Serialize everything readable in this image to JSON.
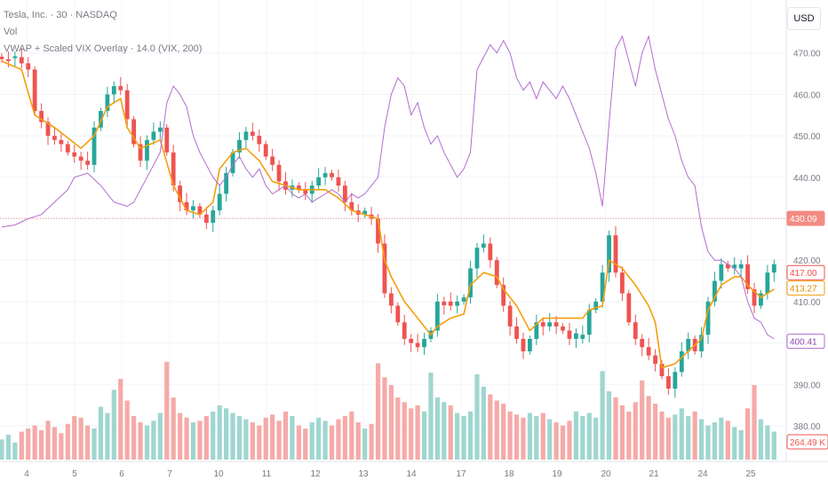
{
  "header": {
    "title": "Tesla, Inc. · 30 · NASDAQ",
    "vol_label": "Vol",
    "indicator_label": "VWAP + Scaled VIX Overlay · 14.0 (VIX, 200)"
  },
  "currency_button": "USD",
  "colors": {
    "up": "#26a69a",
    "down": "#ef5350",
    "vol_up": "#9fd6d0",
    "vol_down": "#f5aaa8",
    "vwap": "#f59e0b",
    "vix": "#b16ccf",
    "price_line": "#f28b82"
  },
  "chart_data": {
    "type": "candlestick",
    "y_axis_ticks": [
      "470.00",
      "460.00",
      "450.00",
      "440.00",
      "430.00",
      "420.00",
      "410.00",
      "400.00",
      "390.00",
      "380.00"
    ],
    "ylim": [
      377,
      477
    ],
    "x_tick_labels": [
      "4",
      "5",
      "6",
      "7",
      "10",
      "11",
      "12",
      "13",
      "14",
      "17",
      "18",
      "19",
      "20",
      "21",
      "24",
      "25"
    ],
    "current_price_line": 430.09,
    "axis_tags": [
      {
        "label": "430.09",
        "value": 430.09,
        "style": "price"
      },
      {
        "label": "417.00",
        "value": 417.0,
        "style": "close"
      },
      {
        "label": "413.27",
        "value": 413.27,
        "style": "vwap"
      },
      {
        "label": "400.41",
        "value": 400.41,
        "style": "vix"
      },
      {
        "label": "264.49 K",
        "value": 378.3,
        "style": "volume"
      }
    ],
    "close_path": [
      [
        0,
        468.5
      ],
      [
        2,
        469
      ],
      [
        4,
        466
      ],
      [
        5,
        456
      ],
      [
        6.5,
        452
      ],
      [
        7,
        450
      ],
      [
        8,
        449
      ],
      [
        9,
        448
      ],
      [
        10,
        446
      ],
      [
        11,
        445
      ],
      [
        12,
        444
      ],
      [
        13,
        443
      ],
      [
        14,
        452
      ],
      [
        15,
        456
      ],
      [
        16,
        460
      ],
      [
        17,
        462
      ],
      [
        17.5,
        465
      ],
      [
        18,
        461
      ],
      [
        19,
        454
      ],
      [
        20,
        448
      ],
      [
        20.5,
        441
      ],
      [
        21,
        444
      ],
      [
        22,
        449
      ],
      [
        23,
        451
      ],
      [
        24,
        452
      ],
      [
        25,
        446
      ],
      [
        26,
        438
      ],
      [
        27,
        434
      ],
      [
        28,
        432
      ],
      [
        29,
        433
      ],
      [
        30,
        431
      ],
      [
        31,
        429
      ],
      [
        32,
        432
      ],
      [
        33,
        436
      ],
      [
        34,
        441
      ],
      [
        35,
        446
      ],
      [
        36,
        449
      ],
      [
        37,
        451
      ],
      [
        38,
        450
      ],
      [
        39,
        448
      ],
      [
        40,
        445
      ],
      [
        41,
        443
      ],
      [
        42,
        439
      ],
      [
        43,
        437
      ],
      [
        44,
        438
      ],
      [
        45,
        437
      ],
      [
        46,
        436
      ],
      [
        47,
        438
      ],
      [
        48,
        440
      ],
      [
        49,
        441
      ],
      [
        50,
        440
      ],
      [
        51,
        438
      ],
      [
        52,
        434
      ],
      [
        53,
        432
      ],
      [
        54,
        431
      ],
      [
        55,
        431
      ],
      [
        56,
        430
      ],
      [
        57,
        424
      ],
      [
        58,
        412
      ],
      [
        59,
        409
      ],
      [
        60,
        405
      ],
      [
        61,
        401
      ],
      [
        62,
        400
      ],
      [
        63,
        399
      ],
      [
        64,
        401
      ],
      [
        65,
        403
      ],
      [
        66,
        410
      ],
      [
        67,
        410
      ],
      [
        68,
        409
      ],
      [
        69,
        410
      ],
      [
        70,
        411
      ],
      [
        71,
        418
      ],
      [
        72,
        423
      ],
      [
        73,
        424
      ],
      [
        74,
        420
      ],
      [
        75,
        414
      ],
      [
        76,
        409
      ],
      [
        77,
        404
      ],
      [
        78,
        401
      ],
      [
        79,
        398
      ],
      [
        80,
        401
      ],
      [
        81,
        405
      ],
      [
        82,
        404
      ],
      [
        83,
        405
      ],
      [
        84,
        404
      ],
      [
        85,
        403
      ],
      [
        86,
        401
      ],
      [
        87,
        401
      ],
      [
        88,
        402
      ],
      [
        89,
        408
      ],
      [
        90,
        410
      ],
      [
        91,
        417
      ],
      [
        92,
        426
      ],
      [
        93,
        417
      ],
      [
        94,
        412
      ],
      [
        95,
        405
      ],
      [
        96,
        401
      ],
      [
        97,
        399
      ],
      [
        98,
        397
      ],
      [
        99,
        395
      ],
      [
        100,
        392
      ],
      [
        101,
        389
      ],
      [
        102,
        393
      ],
      [
        103,
        398
      ],
      [
        104,
        401
      ],
      [
        105,
        398
      ],
      [
        106,
        402
      ],
      [
        107,
        410
      ],
      [
        108,
        415
      ],
      [
        109,
        419
      ],
      [
        110,
        418
      ],
      [
        111,
        418
      ],
      [
        112,
        419
      ],
      [
        113,
        413
      ],
      [
        114,
        409
      ],
      [
        115,
        412
      ],
      [
        116,
        417
      ],
      [
        117,
        419
      ],
      [
        118,
        417
      ]
    ],
    "vwap_path": [
      [
        0,
        468
      ],
      [
        3,
        466
      ],
      [
        5,
        455
      ],
      [
        8,
        452
      ],
      [
        12,
        447
      ],
      [
        14,
        450
      ],
      [
        16,
        457
      ],
      [
        18,
        459
      ],
      [
        19,
        452
      ],
      [
        21,
        447
      ],
      [
        24,
        449
      ],
      [
        26,
        438
      ],
      [
        28,
        432
      ],
      [
        30,
        431
      ],
      [
        32,
        434
      ],
      [
        33,
        442
      ],
      [
        35,
        446
      ],
      [
        37,
        447
      ],
      [
        39,
        444
      ],
      [
        41,
        439
      ],
      [
        43,
        438
      ],
      [
        45,
        437
      ],
      [
        47,
        437
      ],
      [
        49,
        437
      ],
      [
        51,
        435
      ],
      [
        53,
        432
      ],
      [
        55,
        431
      ],
      [
        57,
        430
      ],
      [
        58,
        420
      ],
      [
        59,
        416
      ],
      [
        61,
        410
      ],
      [
        63,
        406
      ],
      [
        64,
        404
      ],
      [
        65,
        402
      ],
      [
        66,
        404
      ],
      [
        68,
        406
      ],
      [
        70,
        407
      ],
      [
        71,
        414
      ],
      [
        73,
        417
      ],
      [
        75,
        416
      ],
      [
        76,
        413
      ],
      [
        78,
        409
      ],
      [
        80,
        403
      ],
      [
        82,
        406
      ],
      [
        84,
        406
      ],
      [
        86,
        406
      ],
      [
        88,
        406
      ],
      [
        89,
        408
      ],
      [
        91,
        409
      ],
      [
        92,
        420
      ],
      [
        94,
        418
      ],
      [
        96,
        414
      ],
      [
        98,
        409
      ],
      [
        99,
        405
      ],
      [
        100,
        394
      ],
      [
        102,
        395
      ],
      [
        104,
        398
      ],
      [
        106,
        401
      ],
      [
        107,
        408
      ],
      [
        109,
        414
      ],
      [
        111,
        416
      ],
      [
        112,
        416
      ],
      [
        113,
        414
      ],
      [
        115,
        411
      ],
      [
        117,
        413
      ],
      [
        118,
        413.3
      ]
    ],
    "vix_path": [
      [
        0,
        428
      ],
      [
        2,
        428.5
      ],
      [
        4,
        430
      ],
      [
        6,
        431
      ],
      [
        8,
        434
      ],
      [
        10,
        437
      ],
      [
        11,
        440
      ],
      [
        13,
        441
      ],
      [
        15,
        438
      ],
      [
        17,
        434
      ],
      [
        19,
        433
      ],
      [
        20,
        434
      ],
      [
        22,
        440
      ],
      [
        24,
        446
      ],
      [
        25,
        458
      ],
      [
        26,
        462
      ],
      [
        27,
        460
      ],
      [
        28,
        457
      ],
      [
        29,
        450
      ],
      [
        30,
        446
      ],
      [
        31,
        443
      ],
      [
        32,
        440
      ],
      [
        33,
        438
      ],
      [
        34,
        440
      ],
      [
        35,
        443
      ],
      [
        36,
        445
      ],
      [
        37,
        442
      ],
      [
        38,
        440
      ],
      [
        39,
        442
      ],
      [
        40,
        438
      ],
      [
        41,
        436
      ],
      [
        42,
        437
      ],
      [
        43,
        438
      ],
      [
        44,
        436
      ],
      [
        45,
        435
      ],
      [
        46,
        436
      ],
      [
        47,
        434
      ],
      [
        48,
        435
      ],
      [
        49,
        436
      ],
      [
        50,
        437
      ],
      [
        51,
        436
      ],
      [
        52,
        434
      ],
      [
        53,
        436
      ],
      [
        54,
        435
      ],
      [
        55,
        436
      ],
      [
        56,
        438
      ],
      [
        57,
        440
      ],
      [
        58,
        452
      ],
      [
        59,
        460
      ],
      [
        60,
        464
      ],
      [
        61,
        462
      ],
      [
        62,
        455
      ],
      [
        63,
        458
      ],
      [
        64,
        452
      ],
      [
        65,
        448
      ],
      [
        66,
        450
      ],
      [
        67,
        446
      ],
      [
        68,
        443
      ],
      [
        69,
        440
      ],
      [
        70,
        442
      ],
      [
        71,
        446
      ],
      [
        72,
        466
      ],
      [
        73,
        469
      ],
      [
        74,
        472
      ],
      [
        75,
        470
      ],
      [
        76,
        473
      ],
      [
        77,
        470
      ],
      [
        78,
        464
      ],
      [
        79,
        461
      ],
      [
        80,
        463
      ],
      [
        81,
        459
      ],
      [
        82,
        463
      ],
      [
        83,
        461
      ],
      [
        84,
        459
      ],
      [
        85,
        462
      ],
      [
        86,
        459
      ],
      [
        87,
        455
      ],
      [
        88,
        451
      ],
      [
        89,
        447
      ],
      [
        90,
        441
      ],
      [
        91,
        433
      ],
      [
        92,
        453
      ],
      [
        93,
        471
      ],
      [
        94,
        474
      ],
      [
        95,
        468
      ],
      [
        96,
        462
      ],
      [
        97,
        470
      ],
      [
        98,
        474
      ],
      [
        99,
        466
      ],
      [
        100,
        460
      ],
      [
        101,
        454
      ],
      [
        102,
        450
      ],
      [
        103,
        444
      ],
      [
        104,
        440
      ],
      [
        105,
        438
      ],
      [
        106,
        428
      ],
      [
        107,
        422
      ],
      [
        108,
        420
      ],
      [
        109,
        420
      ],
      [
        110,
        419
      ],
      [
        111,
        418
      ],
      [
        112,
        416
      ],
      [
        113,
        410
      ],
      [
        114,
        406
      ],
      [
        115,
        405
      ],
      [
        116,
        402
      ],
      [
        117,
        401
      ],
      [
        118,
        400.4
      ]
    ],
    "volume": [
      13,
      16,
      11,
      18,
      20,
      22,
      19,
      25,
      21,
      17,
      23,
      28,
      27,
      22,
      20,
      34,
      30,
      45,
      52,
      38,
      28,
      24,
      22,
      25,
      30,
      63,
      40,
      30,
      27,
      24,
      25,
      28,
      31,
      35,
      33,
      30,
      28,
      26,
      24,
      22,
      27,
      29,
      25,
      31,
      28,
      22,
      20,
      24,
      27,
      25,
      22,
      26,
      28,
      31,
      24,
      20,
      23,
      62,
      53,
      48,
      40,
      37,
      33,
      35,
      31,
      56,
      40,
      37,
      35,
      30,
      28,
      31,
      55,
      47,
      42,
      38,
      36,
      31,
      29,
      27,
      30,
      28,
      30,
      26,
      24,
      22,
      25,
      31,
      28,
      30,
      27,
      57,
      44,
      40,
      35,
      31,
      37,
      51,
      41,
      36,
      31,
      27,
      29,
      33,
      28,
      31,
      26,
      22,
      24,
      27,
      25,
      21,
      19,
      33,
      48,
      26,
      22,
      18
    ]
  }
}
